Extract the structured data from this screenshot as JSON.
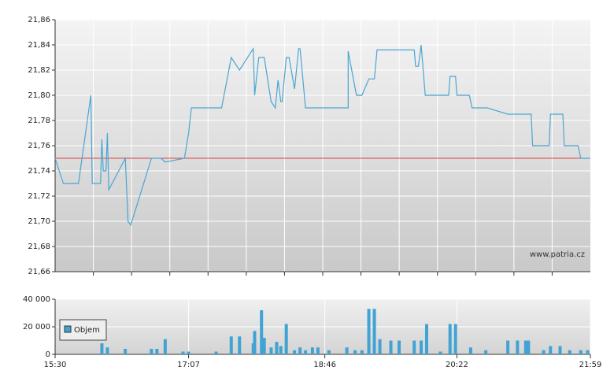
{
  "chart_data": [
    {
      "type": "line",
      "annotation": "www.patria.cz",
      "color": "#4aa6d2",
      "reference_line": 21.75,
      "reference_color": "#d94040",
      "grid": true,
      "x": [
        "15:30",
        "15:36",
        "15:47",
        "15:56",
        "15:57",
        "16:03",
        "16:04",
        "16:05",
        "16:07",
        "16:08",
        "16:09",
        "16:21",
        "16:23",
        "16:25",
        "16:40",
        "16:47",
        "16:50",
        "17:04",
        "17:07",
        "17:09",
        "17:31",
        "17:38",
        "17:44",
        "17:54",
        "17:55",
        "17:58",
        "18:02",
        "18:07",
        "18:10",
        "18:12",
        "18:14",
        "18:15",
        "18:18",
        "18:20",
        "18:24",
        "18:27",
        "18:28",
        "18:32",
        "19:03",
        "19:03",
        "19:09",
        "19:13",
        "19:18",
        "19:22",
        "19:24",
        "19:51",
        "19:52",
        "19:54",
        "19:56",
        "19:59",
        "20:16",
        "20:17",
        "20:21",
        "20:22",
        "20:31",
        "20:33",
        "20:44",
        "20:59",
        "21:16",
        "21:17",
        "21:29",
        "21:30",
        "21:39",
        "21:40",
        "21:50",
        "21:52",
        "21:59"
      ],
      "values": [
        21.75,
        21.73,
        21.73,
        21.8,
        21.73,
        21.73,
        21.765,
        21.74,
        21.74,
        21.77,
        21.725,
        21.75,
        21.7,
        21.697,
        21.75,
        21.75,
        21.747,
        21.75,
        21.77,
        21.79,
        21.79,
        21.83,
        21.82,
        21.837,
        21.8,
        21.83,
        21.83,
        21.795,
        21.79,
        21.812,
        21.795,
        21.795,
        21.83,
        21.83,
        21.805,
        21.837,
        21.837,
        21.79,
        21.79,
        21.835,
        21.8,
        21.8,
        21.813,
        21.813,
        21.836,
        21.836,
        21.823,
        21.823,
        21.84,
        21.8,
        21.8,
        21.815,
        21.815,
        21.8,
        21.8,
        21.79,
        21.79,
        21.785,
        21.785,
        21.76,
        21.76,
        21.785,
        21.785,
        21.76,
        21.76,
        21.75,
        21.75
      ],
      "xlim": [
        "15:30",
        "21:59"
      ],
      "ylim": [
        21.66,
        21.86
      ],
      "yticks": [
        {
          "value": 21.66,
          "label": "21,66"
        },
        {
          "value": 21.68,
          "label": "21,68"
        },
        {
          "value": 21.7,
          "label": "21,70"
        },
        {
          "value": 21.72,
          "label": "21,72"
        },
        {
          "value": 21.74,
          "label": "21,74"
        },
        {
          "value": 21.76,
          "label": "21,76"
        },
        {
          "value": 21.78,
          "label": "21,78"
        },
        {
          "value": 21.8,
          "label": "21,80"
        },
        {
          "value": 21.82,
          "label": "21,82"
        },
        {
          "value": 21.84,
          "label": "21,84"
        },
        {
          "value": 21.86,
          "label": "21,86"
        }
      ]
    },
    {
      "type": "bar",
      "legend": "Objem",
      "color": "#3fa3d3",
      "grid": true,
      "x": [
        "16:04",
        "16:08",
        "16:21",
        "16:40",
        "16:44",
        "16:50",
        "17:03",
        "17:07",
        "17:27",
        "17:38",
        "17:44",
        "17:54",
        "17:55",
        "18:00",
        "18:02",
        "18:07",
        "18:11",
        "18:14",
        "18:18",
        "18:24",
        "18:28",
        "18:32",
        "18:37",
        "18:41",
        "18:49",
        "19:02",
        "19:08",
        "19:13",
        "19:18",
        "19:22",
        "19:26",
        "19:34",
        "19:40",
        "19:51",
        "19:56",
        "20:00",
        "20:10",
        "20:17",
        "20:21",
        "20:32",
        "20:43",
        "20:59",
        "21:06",
        "21:12",
        "21:14",
        "21:25",
        "21:30",
        "21:37",
        "21:44",
        "21:52",
        "21:57"
      ],
      "values": [
        8000,
        5000,
        4000,
        4000,
        4000,
        11000,
        2000,
        2000,
        2000,
        13000,
        13000,
        8000,
        17000,
        32000,
        12000,
        5000,
        9000,
        6000,
        22000,
        3000,
        5000,
        3000,
        5000,
        5000,
        3000,
        5000,
        3000,
        3000,
        33000,
        33000,
        11000,
        10000,
        10000,
        10000,
        10000,
        22000,
        2000,
        22000,
        22000,
        5000,
        3000,
        10000,
        10000,
        10000,
        10000,
        3000,
        6000,
        6000,
        3000,
        3000,
        3000
      ],
      "xlim": [
        "15:30",
        "21:59"
      ],
      "xticks": [
        "15:30",
        "17:07",
        "18:46",
        "20:22",
        "21:59"
      ],
      "ylim": [
        0,
        40000
      ],
      "yticks": [
        {
          "value": 0,
          "label": "0"
        },
        {
          "value": 20000,
          "label": "20 000"
        },
        {
          "value": 40000,
          "label": "40 000"
        }
      ]
    }
  ]
}
